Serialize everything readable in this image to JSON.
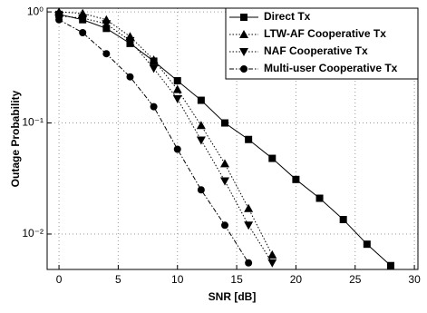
{
  "chart_data": {
    "type": "line",
    "xlabel": "SNR [dB]",
    "ylabel": "Outage Probability",
    "xlim": [
      -1,
      30.3
    ],
    "xticks": [
      0,
      5,
      10,
      15,
      20,
      25,
      30
    ],
    "ylim": [
      0.0048,
      1.08
    ],
    "ylog": true,
    "yticks": [
      {
        "value": 1,
        "label": "10⁰"
      },
      {
        "value": 0.1,
        "label": "10⁻¹"
      },
      {
        "value": 0.01,
        "label": "10⁻²"
      }
    ],
    "grid": true,
    "legend": "upper right",
    "series": [
      {
        "name": "Direct Tx",
        "color": "#000000",
        "marker": "square",
        "dash": "solid",
        "x": [
          0,
          2,
          4,
          6,
          8,
          10,
          12,
          14,
          16,
          18,
          20,
          22,
          24,
          26,
          28
        ],
        "values": [
          0.95,
          0.85,
          0.71,
          0.52,
          0.36,
          0.24,
          0.16,
          0.1,
          0.071,
          0.048,
          0.031,
          0.021,
          0.0135,
          0.0081,
          0.0052
        ]
      },
      {
        "name": "LTW-AF Cooperative Tx",
        "color": "#000000",
        "marker": "triangle-up",
        "dash": "dotted",
        "x": [
          0,
          2,
          4,
          6,
          8,
          10,
          12,
          14,
          16,
          18
        ],
        "values": [
          1.0,
          0.97,
          0.85,
          0.6,
          0.37,
          0.2,
          0.095,
          0.043,
          0.017,
          0.0065
        ]
      },
      {
        "name": "NAF Cooperative Tx",
        "color": "#000000",
        "marker": "triangle-down",
        "dash": "dotted",
        "x": [
          0,
          2,
          4,
          6,
          8,
          10,
          12,
          14,
          16,
          18
        ],
        "values": [
          0.92,
          0.88,
          0.78,
          0.55,
          0.31,
          0.165,
          0.07,
          0.03,
          0.012,
          0.0055
        ]
      },
      {
        "name": "Multi-user Cooperative Tx",
        "color": "#000000",
        "marker": "circle",
        "dash": "dashdot",
        "x": [
          0,
          2,
          4,
          6,
          8,
          10,
          12,
          14,
          16
        ],
        "values": [
          0.85,
          0.65,
          0.42,
          0.26,
          0.14,
          0.058,
          0.025,
          0.012,
          0.0055
        ]
      }
    ]
  }
}
